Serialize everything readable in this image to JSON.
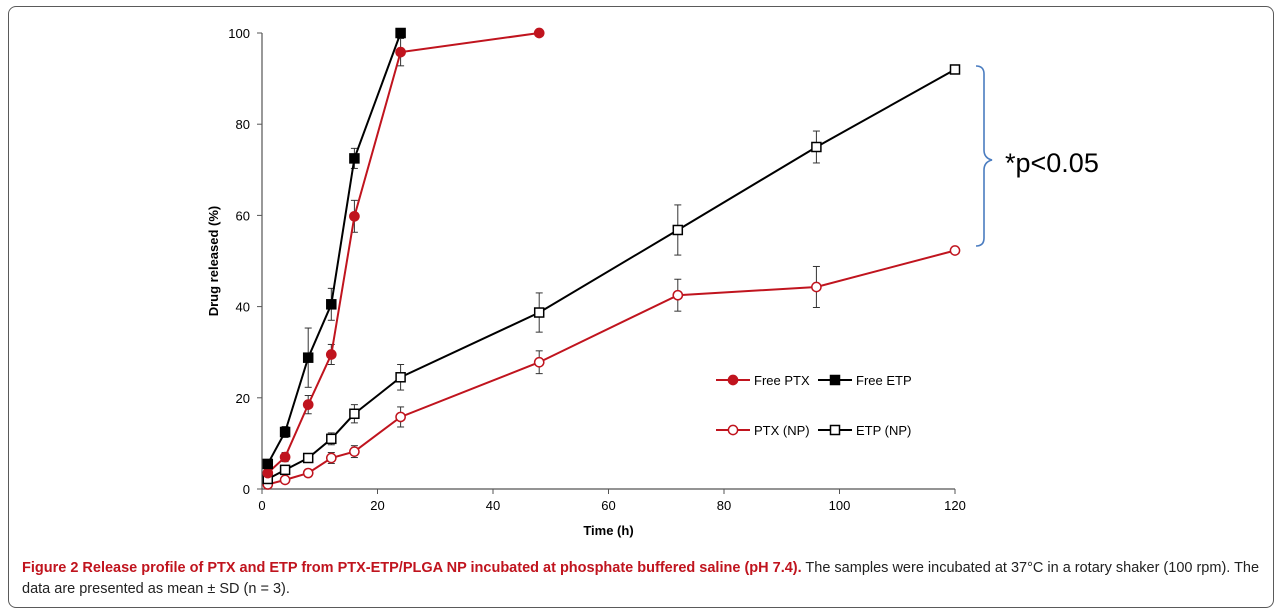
{
  "caption": {
    "title": "Figure 2 Release profile of PTX and ETP from PTX-ETP/PLGA NP incubated at phosphate buffered saline (pH 7.4).",
    "body": " The samples were incubated at 37°C in a rotary shaker (100 rpm). The data are presented as mean ± SD (n = 3)."
  },
  "chart_data": {
    "type": "line",
    "xlabel": "Time (h)",
    "ylabel": "Drug released (%)",
    "xlim": [
      0,
      120
    ],
    "ylim": [
      0,
      100
    ],
    "xticks": [
      0,
      20,
      40,
      60,
      80,
      100,
      120
    ],
    "yticks": [
      0,
      20,
      40,
      60,
      80,
      100
    ],
    "grid": false,
    "legend_position": "lower-right",
    "annotation": "*p<0.05",
    "series": [
      {
        "name": "Free PTX",
        "color": "#c0141e",
        "marker": "circle-filled",
        "x": [
          1,
          4,
          8,
          12,
          16,
          24,
          48
        ],
        "y": [
          3.5,
          7,
          18.5,
          29.5,
          59.8,
          95.8,
          100
        ],
        "err": [
          0.8,
          1,
          2,
          2.2,
          3.5,
          3,
          0
        ]
      },
      {
        "name": "Free ETP",
        "color": "#000000",
        "marker": "square-filled",
        "x": [
          1,
          4,
          8,
          12,
          16,
          24
        ],
        "y": [
          5.5,
          12.5,
          28.8,
          40.5,
          72.5,
          100
        ],
        "err": [
          0.8,
          1.2,
          6.5,
          3.5,
          2.2,
          0
        ]
      },
      {
        "name": "PTX (NP)",
        "color": "#c0141e",
        "marker": "circle-open",
        "x": [
          1,
          4,
          8,
          12,
          16,
          24,
          48,
          72,
          96,
          120
        ],
        "y": [
          1,
          2,
          3.5,
          6.8,
          8.2,
          15.8,
          27.8,
          42.5,
          44.3,
          52.3
        ],
        "err": [
          0.4,
          0.5,
          0.8,
          1.2,
          1.3,
          2.2,
          2.5,
          3.5,
          4.5,
          0
        ]
      },
      {
        "name": "ETP (NP)",
        "color": "#000000",
        "marker": "square-open",
        "x": [
          1,
          4,
          8,
          12,
          16,
          24,
          48,
          72,
          96,
          120
        ],
        "y": [
          2.2,
          4.2,
          6.8,
          11,
          16.5,
          24.5,
          38.7,
          56.8,
          75,
          92
        ],
        "err": [
          0.5,
          0.8,
          0.7,
          1.3,
          2,
          2.8,
          4.3,
          5.5,
          3.5,
          0
        ]
      }
    ]
  }
}
